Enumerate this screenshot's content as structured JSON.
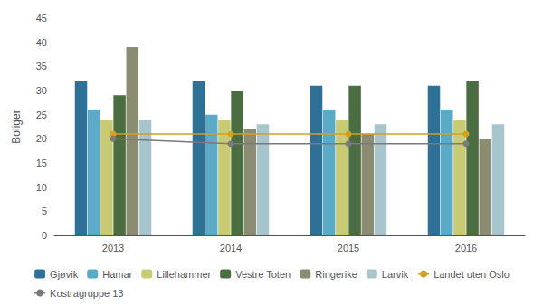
{
  "chart_data": {
    "type": "bar",
    "ylabel": "Boliger",
    "categories": [
      "2013",
      "2014",
      "2015",
      "2016"
    ],
    "series": [
      {
        "name": "Gjøvik",
        "type": "bar",
        "color": "#2e7096",
        "values": [
          32,
          32,
          31,
          31
        ]
      },
      {
        "name": "Hamar",
        "type": "bar",
        "color": "#5aaac8",
        "values": [
          26,
          25,
          26,
          26
        ]
      },
      {
        "name": "Lillehammer",
        "type": "bar",
        "color": "#c8cb74",
        "values": [
          24,
          24,
          24,
          24
        ]
      },
      {
        "name": "Vestre Toten",
        "type": "bar",
        "color": "#4a6e42",
        "values": [
          29,
          30,
          31,
          32
        ]
      },
      {
        "name": "Ringerike",
        "type": "bar",
        "color": "#8c8c72",
        "values": [
          39,
          22,
          21,
          20
        ]
      },
      {
        "name": "Larvik",
        "type": "bar",
        "color": "#a8c4cc",
        "values": [
          24,
          23,
          23,
          23
        ]
      },
      {
        "name": "Landet uten Oslo",
        "type": "line",
        "marker": "circle",
        "color": "#d4a020",
        "values": [
          21,
          21,
          21,
          21
        ]
      },
      {
        "name": "Kostragruppe 13",
        "type": "line",
        "marker": "circle",
        "color": "#7a7a7a",
        "values": [
          20,
          19,
          19,
          19
        ]
      }
    ],
    "ylim": [
      0,
      45
    ],
    "yticks": [
      0,
      5,
      10,
      15,
      20,
      25,
      30,
      35,
      40,
      45
    ],
    "grid": false,
    "legend": "bottom"
  }
}
